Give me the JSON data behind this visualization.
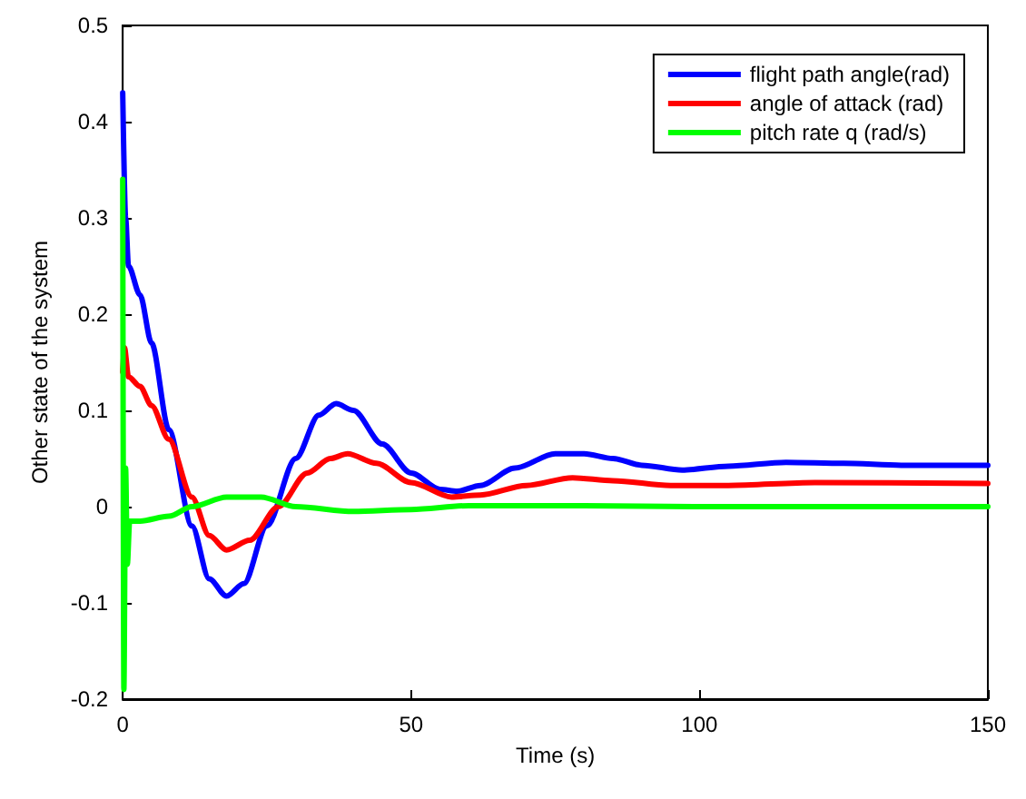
{
  "chart_data": {
    "type": "line",
    "xlabel": "Time (s)",
    "ylabel": "Other state of the system",
    "xlim": [
      0,
      150
    ],
    "ylim": [
      -0.2,
      0.5
    ],
    "xticks": [
      0,
      50,
      100,
      150
    ],
    "yticks": [
      -0.2,
      -0.1,
      0,
      0.1,
      0.2,
      0.3,
      0.4,
      0.5
    ],
    "grid": false,
    "legend": "top right",
    "marker": "none",
    "line_style": "solid",
    "series": [
      {
        "name": "flight path angle(rad)",
        "color": "#0000ff",
        "x": [
          0,
          0.5,
          1,
          3,
          5,
          8,
          12,
          15,
          18,
          21,
          25,
          30,
          34,
          37,
          40,
          45,
          50,
          55,
          58,
          62,
          68,
          75,
          80,
          85,
          90,
          97,
          105,
          115,
          125,
          135,
          150
        ],
        "values": [
          0.43,
          0.3,
          0.25,
          0.22,
          0.17,
          0.08,
          -0.02,
          -0.075,
          -0.093,
          -0.08,
          -0.02,
          0.05,
          0.095,
          0.107,
          0.1,
          0.065,
          0.035,
          0.018,
          0.016,
          0.022,
          0.04,
          0.055,
          0.055,
          0.05,
          0.043,
          0.038,
          0.042,
          0.046,
          0.045,
          0.043,
          0.043
        ]
      },
      {
        "name": "angle of attack (rad)",
        "color": "#ff0000",
        "x": [
          0,
          0.3,
          1,
          3,
          5,
          8,
          12,
          15,
          18,
          22,
          27,
          32,
          36,
          39,
          44,
          50,
          57,
          62,
          70,
          78,
          85,
          95,
          105,
          120,
          150
        ],
        "values": [
          0.14,
          0.165,
          0.135,
          0.125,
          0.105,
          0.07,
          0.01,
          -0.03,
          -0.045,
          -0.035,
          0,
          0.035,
          0.05,
          0.055,
          0.045,
          0.025,
          0.01,
          0.012,
          0.022,
          0.03,
          0.027,
          0.022,
          0.022,
          0.025,
          0.024
        ]
      },
      {
        "name": "pitch rate q (rad/s)",
        "color": "#00ff00",
        "x": [
          0,
          0.2,
          0.5,
          0.8,
          1.2,
          3,
          8,
          12,
          18,
          24,
          30,
          40,
          50,
          60,
          80,
          100,
          150
        ],
        "values": [
          0.34,
          -0.19,
          0.04,
          -0.06,
          -0.015,
          -0.015,
          -0.01,
          0,
          0.01,
          0.01,
          0,
          -0.005,
          -0.003,
          0.001,
          0.001,
          0,
          0
        ]
      }
    ]
  }
}
